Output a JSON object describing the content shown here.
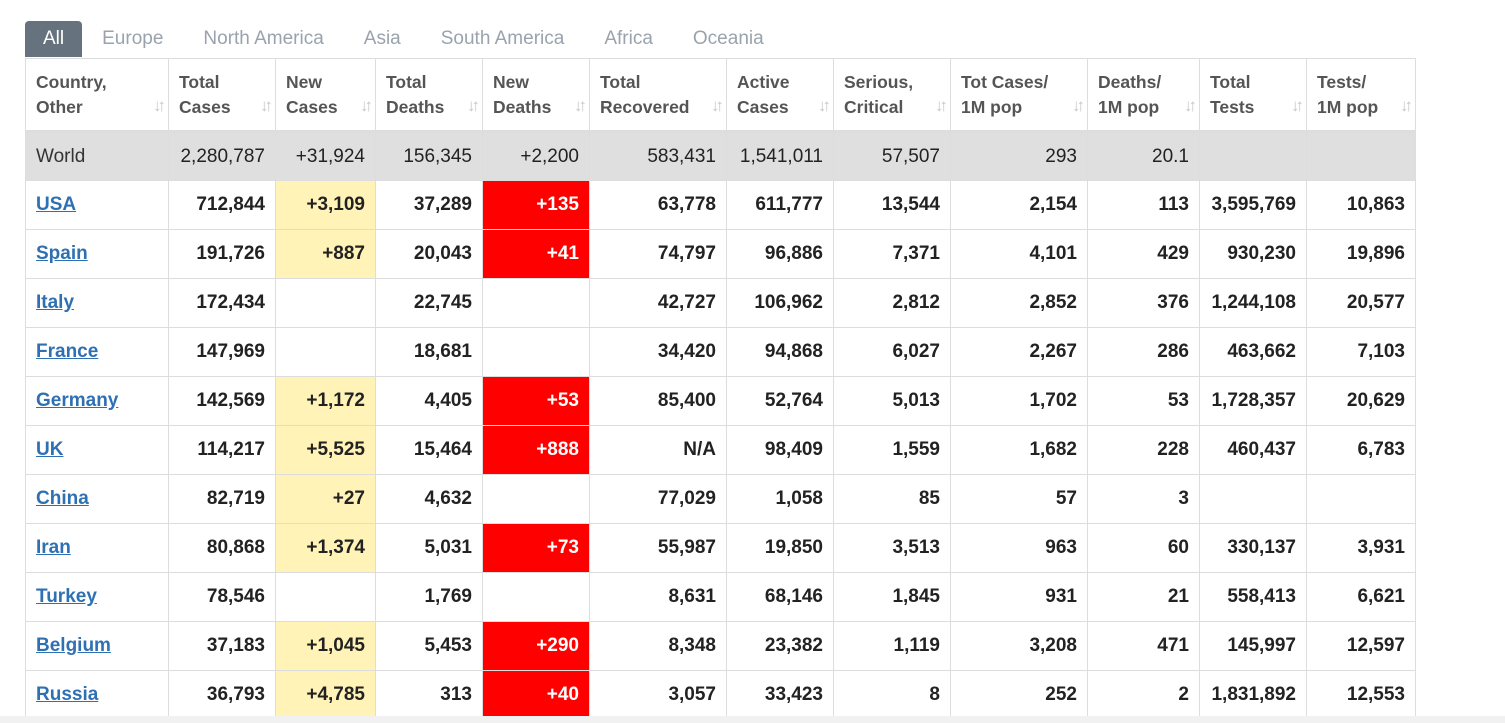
{
  "tabs": [
    "All",
    "Europe",
    "North America",
    "Asia",
    "South America",
    "Africa",
    "Oceania"
  ],
  "active_tab": "All",
  "columns": [
    {
      "line1": "Country,",
      "line2": "Other"
    },
    {
      "line1": "Total",
      "line2": "Cases"
    },
    {
      "line1": "New",
      "line2": "Cases"
    },
    {
      "line1": "Total",
      "line2": "Deaths"
    },
    {
      "line1": "New",
      "line2": "Deaths"
    },
    {
      "line1": "Total",
      "line2": "Recovered"
    },
    {
      "line1": "Active",
      "line2": "Cases"
    },
    {
      "line1": "Serious,",
      "line2": "Critical"
    },
    {
      "line1": "Tot Cases/",
      "line2": "1M pop"
    },
    {
      "line1": "Deaths/",
      "line2": "1M pop"
    },
    {
      "line1": "Total",
      "line2": "Tests"
    },
    {
      "line1": "Tests/",
      "line2": "1M pop"
    }
  ],
  "sort_icon": "sort-arrows-icon",
  "world": [
    "World",
    "2,280,787",
    "+31,924",
    "156,345",
    "+2,200",
    "583,431",
    "1,541,011",
    "57,507",
    "293",
    "20.1",
    "",
    ""
  ],
  "rows": [
    [
      "USA",
      "712,844",
      "+3,109",
      "37,289",
      "+135",
      "63,778",
      "611,777",
      "13,544",
      "2,154",
      "113",
      "3,595,769",
      "10,863"
    ],
    [
      "Spain",
      "191,726",
      "+887",
      "20,043",
      "+41",
      "74,797",
      "96,886",
      "7,371",
      "4,101",
      "429",
      "930,230",
      "19,896"
    ],
    [
      "Italy",
      "172,434",
      "",
      "22,745",
      "",
      "42,727",
      "106,962",
      "2,812",
      "2,852",
      "376",
      "1,244,108",
      "20,577"
    ],
    [
      "France",
      "147,969",
      "",
      "18,681",
      "",
      "34,420",
      "94,868",
      "6,027",
      "2,267",
      "286",
      "463,662",
      "7,103"
    ],
    [
      "Germany",
      "142,569",
      "+1,172",
      "4,405",
      "+53",
      "85,400",
      "52,764",
      "5,013",
      "1,702",
      "53",
      "1,728,357",
      "20,629"
    ],
    [
      "UK",
      "114,217",
      "+5,525",
      "15,464",
      "+888",
      "N/A",
      "98,409",
      "1,559",
      "1,682",
      "228",
      "460,437",
      "6,783"
    ],
    [
      "China",
      "82,719",
      "+27",
      "4,632",
      "",
      "77,029",
      "1,058",
      "85",
      "57",
      "3",
      "",
      ""
    ],
    [
      "Iran",
      "80,868",
      "+1,374",
      "5,031",
      "+73",
      "55,987",
      "19,850",
      "3,513",
      "963",
      "60",
      "330,137",
      "3,931"
    ],
    [
      "Turkey",
      "78,546",
      "",
      "1,769",
      "",
      "8,631",
      "68,146",
      "1,845",
      "931",
      "21",
      "558,413",
      "6,621"
    ],
    [
      "Belgium",
      "37,183",
      "+1,045",
      "5,453",
      "+290",
      "8,348",
      "23,382",
      "1,119",
      "3,208",
      "471",
      "145,997",
      "12,597"
    ],
    [
      "Russia",
      "36,793",
      "+4,785",
      "313",
      "+40",
      "3,057",
      "33,423",
      "8",
      "252",
      "2",
      "1,831,892",
      "12,553"
    ]
  ],
  "colors": {
    "new_cases_bg": "#fff3b8",
    "new_deaths_bg": "#ff0000",
    "link": "#2f70b3",
    "tab_active": "#66737f"
  }
}
